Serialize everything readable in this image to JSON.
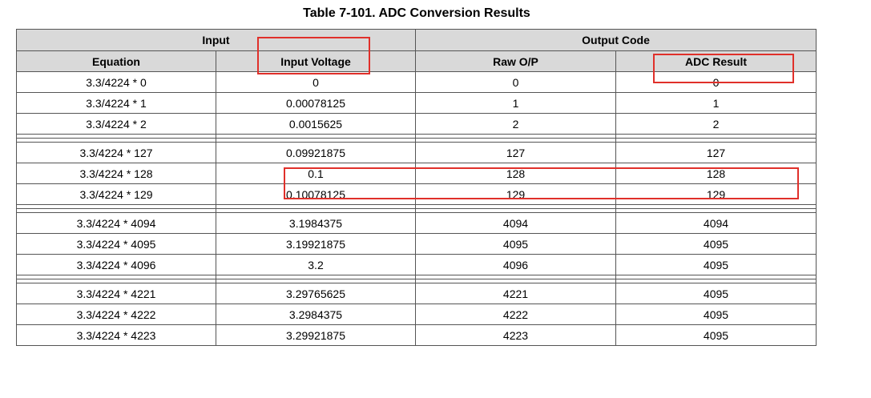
{
  "title": "Table 7-101. ADC Conversion Results",
  "header": {
    "group_input": "Input",
    "group_output": "Output Code",
    "col_equation": "Equation",
    "col_input_voltage": "Input Voltage",
    "col_raw": "Raw O/P",
    "col_adc_result": "ADC Result"
  },
  "rows": [
    {
      "eq": "3.3/4224 * 0",
      "v": "0",
      "raw": "0",
      "res": "0"
    },
    {
      "eq": "3.3/4224 * 1",
      "v": "0.00078125",
      "raw": "1",
      "res": "1"
    },
    {
      "eq": "3.3/4224 * 2",
      "v": "0.0015625",
      "raw": "2",
      "res": "2"
    },
    {
      "eq": "3.3/4224 * 127",
      "v": "0.09921875",
      "raw": "127",
      "res": "127"
    },
    {
      "eq": "3.3/4224 * 128",
      "v": "0.1",
      "raw": "128",
      "res": "128"
    },
    {
      "eq": "3.3/4224 * 129",
      "v": "0.10078125",
      "raw": "129",
      "res": "129"
    },
    {
      "eq": "3.3/4224 * 4094",
      "v": "3.1984375",
      "raw": "4094",
      "res": "4094"
    },
    {
      "eq": "3.3/4224 * 4095",
      "v": "3.19921875",
      "raw": "4095",
      "res": "4095"
    },
    {
      "eq": "3.3/4224 * 4096",
      "v": "3.2",
      "raw": "4096",
      "res": "4095"
    },
    {
      "eq": "3.3/4224 * 4221",
      "v": "3.29765625",
      "raw": "4221",
      "res": "4095"
    },
    {
      "eq": "3.3/4224 * 4222",
      "v": "3.2984375",
      "raw": "4222",
      "res": "4095"
    },
    {
      "eq": "3.3/4224 * 4223",
      "v": "3.29921875",
      "raw": "4223",
      "res": "4095"
    }
  ],
  "highlight_color": "#e0302a"
}
